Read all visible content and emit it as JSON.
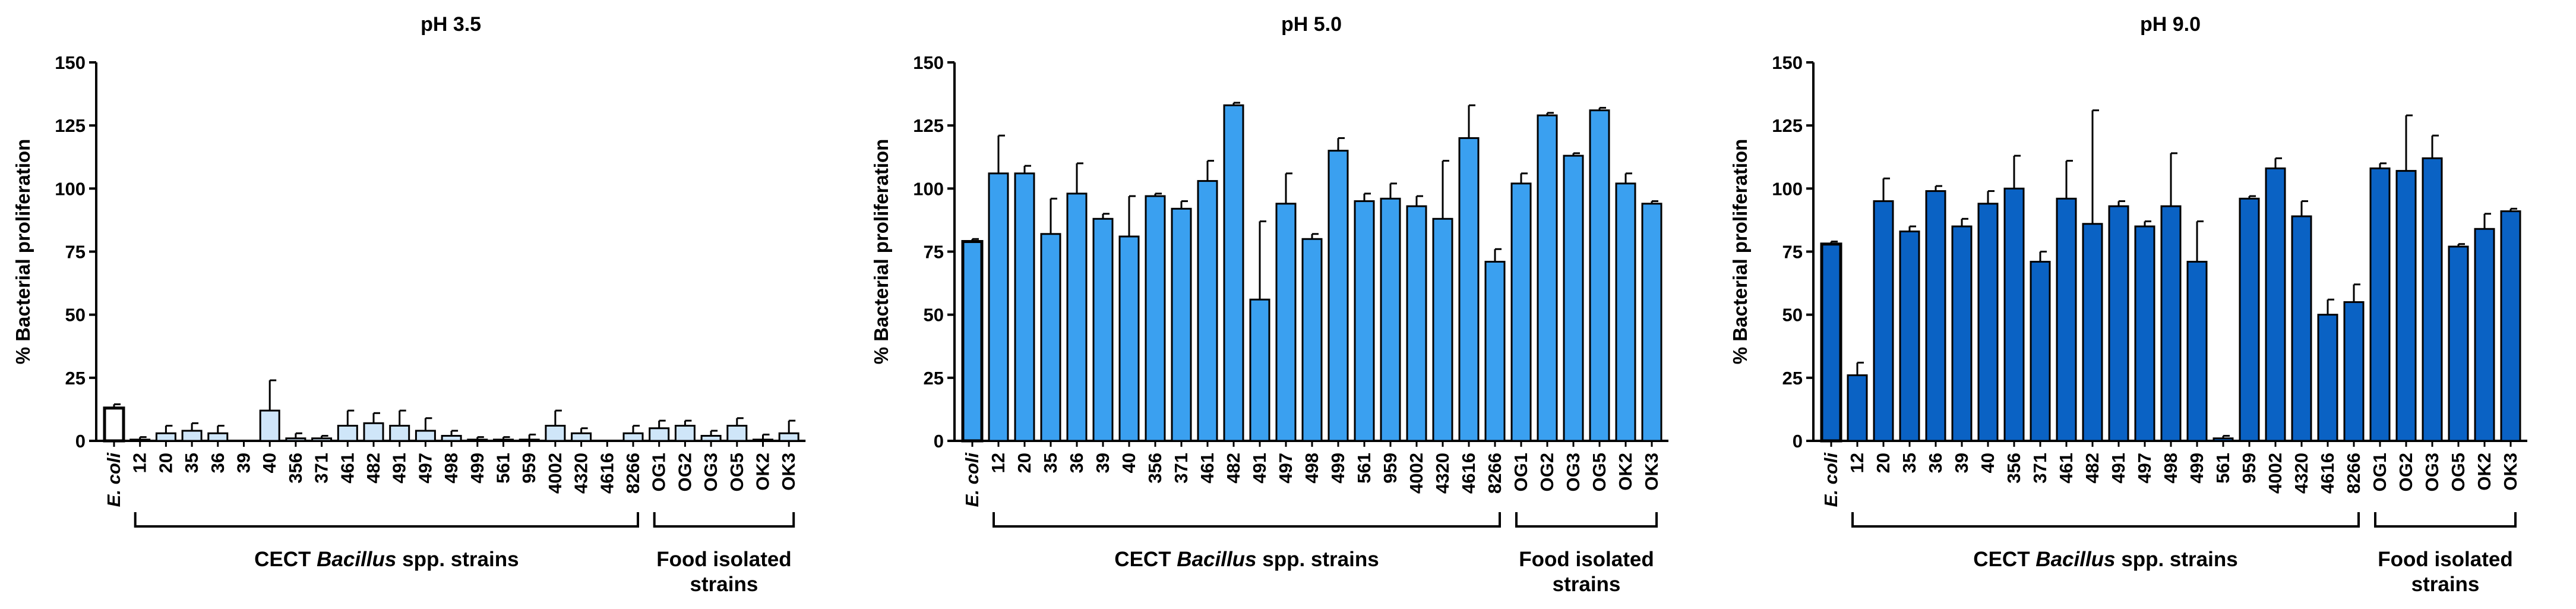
{
  "figure": {
    "group_labels": {
      "cect_prefix": "CECT ",
      "cect_genus": "Bacillus",
      "cect_suffix": " spp. strains",
      "food_line1": "Food isolated",
      "food_line2": "strains"
    }
  },
  "chart_data": [
    {
      "type": "bar",
      "title": "pH 3.5",
      "ylabel": "% Bacterial proliferation",
      "xlabel": "",
      "ylim": [
        0,
        150
      ],
      "yticks": [
        0,
        25,
        50,
        75,
        100,
        125,
        150
      ],
      "grid": false,
      "fill_color": "#cfe6f9",
      "control_fill_color": "#ffffff",
      "categories": [
        "E. coli",
        "12",
        "20",
        "35",
        "36",
        "39",
        "40",
        "356",
        "371",
        "461",
        "482",
        "491",
        "497",
        "498",
        "499",
        "561",
        "959",
        "4002",
        "4320",
        "4616",
        "8266",
        "OG1",
        "OG2",
        "OG3",
        "OG5",
        "OK2",
        "OK3"
      ],
      "values": [
        13,
        0.5,
        3,
        4,
        3,
        0,
        12,
        1,
        1,
        6,
        7,
        6,
        4,
        2,
        0.5,
        0.5,
        0.5,
        6,
        3,
        0,
        3,
        5,
        6,
        2,
        6,
        0.5,
        3
      ],
      "errors": [
        1.5,
        1,
        3,
        3,
        3,
        0,
        12,
        2,
        1,
        6,
        4,
        6,
        5,
        2,
        1,
        1,
        2,
        6,
        2,
        0,
        3,
        3,
        2,
        2,
        3,
        2,
        5
      ]
    },
    {
      "type": "bar",
      "title": "pH 5.0",
      "ylabel": "% Bacterial proliferation",
      "xlabel": "",
      "ylim": [
        0,
        150
      ],
      "yticks": [
        0,
        25,
        50,
        75,
        100,
        125,
        150
      ],
      "grid": false,
      "fill_color": "#3aa0f0",
      "control_fill_color": "#3aa0f0",
      "categories": [
        "E. coli",
        "12",
        "20",
        "35",
        "36",
        "39",
        "40",
        "356",
        "371",
        "461",
        "482",
        "491",
        "497",
        "498",
        "499",
        "561",
        "959",
        "4002",
        "4320",
        "4616",
        "8266",
        "OG1",
        "OG2",
        "OG3",
        "OG5",
        "OK2",
        "OK3"
      ],
      "values": [
        79,
        106,
        106,
        82,
        98,
        88,
        81,
        97,
        92,
        103,
        133,
        56,
        94,
        80,
        115,
        95,
        96,
        93,
        88,
        120,
        71,
        102,
        129,
        113,
        131,
        102,
        94
      ],
      "errors": [
        1,
        15,
        3,
        14,
        12,
        2,
        16,
        1,
        3,
        8,
        1,
        31,
        12,
        2,
        5,
        3,
        6,
        4,
        23,
        13,
        5,
        4,
        1,
        1,
        1,
        4,
        1
      ]
    },
    {
      "type": "bar",
      "title": "pH 9.0",
      "ylabel": "% Bacterial proliferation",
      "xlabel": "",
      "ylim": [
        0,
        150
      ],
      "yticks": [
        0,
        25,
        50,
        75,
        100,
        125,
        150
      ],
      "grid": false,
      "fill_color": "#0a62c4",
      "control_fill_color": "#0a62c4",
      "categories": [
        "E. coli",
        "12",
        "20",
        "35",
        "36",
        "39",
        "40",
        "356",
        "371",
        "461",
        "482",
        "491",
        "497",
        "498",
        "499",
        "561",
        "959",
        "4002",
        "4320",
        "4616",
        "8266",
        "OG1",
        "OG2",
        "OG3",
        "OG5",
        "OK2",
        "OK3"
      ],
      "values": [
        78,
        26,
        95,
        83,
        99,
        85,
        94,
        100,
        71,
        96,
        86,
        93,
        85,
        93,
        71,
        1,
        96,
        108,
        89,
        50,
        55,
        108,
        107,
        112,
        77,
        84,
        91
      ],
      "errors": [
        1,
        5,
        9,
        2,
        2,
        3,
        5,
        13,
        4,
        15,
        45,
        2,
        2,
        21,
        16,
        1,
        1,
        4,
        6,
        6,
        7,
        2,
        22,
        9,
        1,
        6,
        1
      ]
    }
  ]
}
